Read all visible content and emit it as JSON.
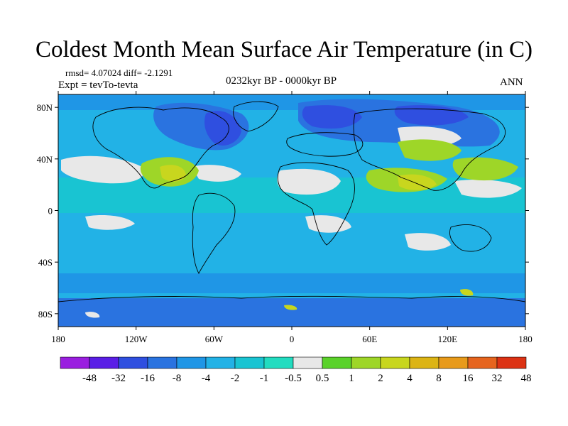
{
  "header": {
    "title": "Coldest Month Mean Surface Air Temperature (in C)",
    "stats": "rmsd= 4.07024  diff= -2.1291",
    "experiment": "Expt = tevTo-tevta",
    "period": "0232kyr BP - 0000kyr BP",
    "season": "ANN"
  },
  "map": {
    "lat_ticks": [
      "80N",
      "40N",
      "0",
      "40S",
      "80S"
    ],
    "lat_values": [
      80,
      40,
      0,
      -40,
      -80
    ],
    "lon_ticks": [
      "180",
      "120W",
      "60W",
      "0",
      "60E",
      "120E",
      "180"
    ],
    "lon_values": [
      -180,
      -120,
      -60,
      0,
      60,
      120,
      180
    ],
    "lon_range": [
      -180,
      180
    ],
    "lat_range": [
      -90,
      90
    ]
  },
  "colorbar": {
    "labels": [
      "-48",
      "-32",
      "-16",
      "-8",
      "-4",
      "-2",
      "-1",
      "-0.5",
      "0.5",
      "1",
      "2",
      "4",
      "8",
      "16",
      "32",
      "48"
    ],
    "colors": [
      "#9a1ee0",
      "#5a1ee6",
      "#2f4fe0",
      "#2a73e0",
      "#1f96e6",
      "#22b2e6",
      "#19c4d2",
      "#22dcc0",
      "#e8e8e8",
      "#5ad22a",
      "#9ed628",
      "#c8d61e",
      "#dcb414",
      "#e89a1a",
      "#e6641e",
      "#dc3214"
    ]
  }
}
